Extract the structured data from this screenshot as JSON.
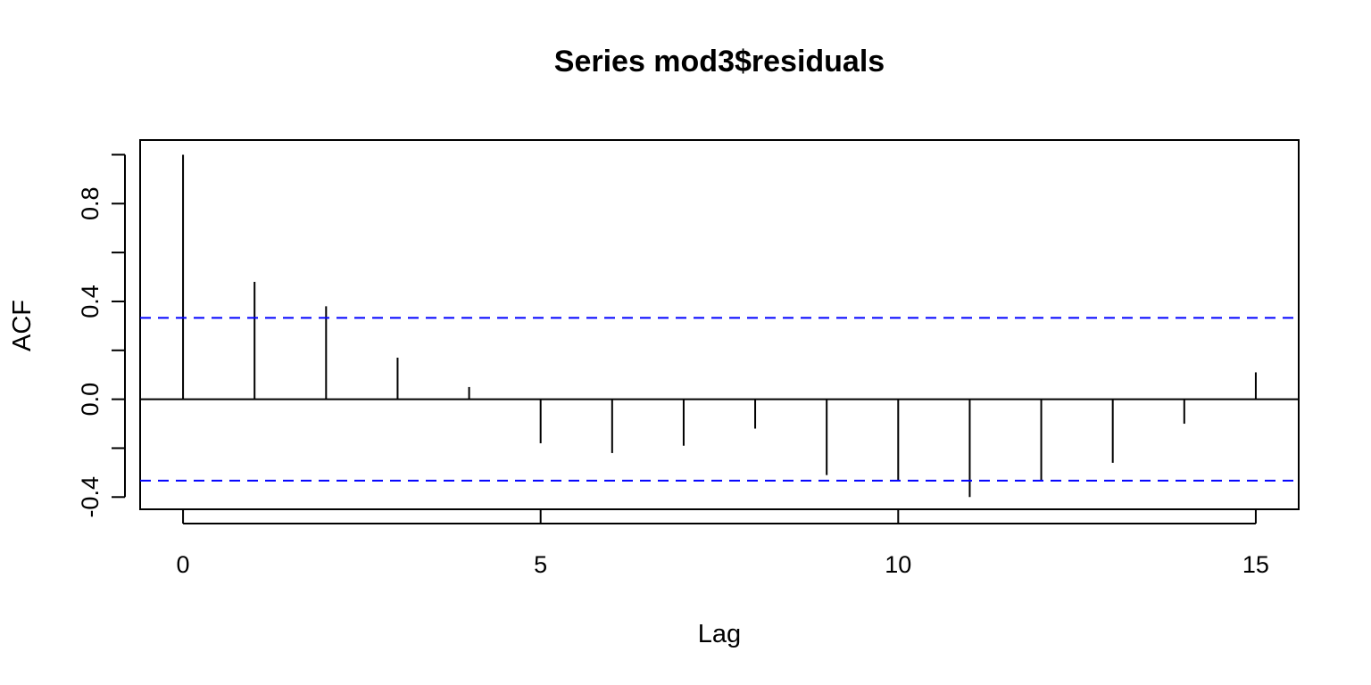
{
  "chart_data": {
    "type": "bar",
    "title": "Series  mod3$residuals",
    "xlabel": "Lag",
    "ylabel": "ACF",
    "x": [
      0,
      1,
      2,
      3,
      4,
      5,
      6,
      7,
      8,
      9,
      10,
      11,
      12,
      13,
      14,
      15
    ],
    "values": [
      1.0,
      0.48,
      0.38,
      0.17,
      0.05,
      -0.18,
      -0.22,
      -0.19,
      -0.12,
      -0.31,
      -0.33,
      -0.4,
      -0.33,
      -0.26,
      -0.1,
      0.11
    ],
    "xlim": [
      -0.6,
      15.6
    ],
    "ylim": [
      -0.45,
      1.06
    ],
    "xticks": [
      0,
      5,
      10,
      15
    ],
    "xtick_labels": [
      "0",
      "5",
      "10",
      "15"
    ],
    "yticks": [
      -0.4,
      -0.2,
      0.0,
      0.2,
      0.4,
      0.6,
      0.8,
      1.0
    ],
    "ytick_labels": [
      "-0.4",
      "",
      "0.0",
      "",
      "0.4",
      "",
      "0.8",
      ""
    ],
    "confidence_bound": 0.333,
    "zero_line": true,
    "grid": false,
    "colors": {
      "bars": "#000000",
      "ci": "#0000ff",
      "axes": "#000000"
    }
  }
}
